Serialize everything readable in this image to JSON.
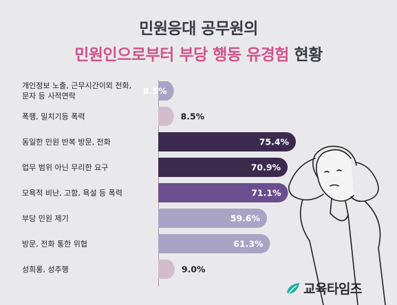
{
  "title": {
    "line1": "민원응대 공무원의",
    "line2_highlight": "민원인으로부터 부당 행동 유경험",
    "line2_rest": " 현황"
  },
  "chart_data": {
    "type": "bar",
    "orientation": "horizontal",
    "categories": [
      [
        "개인정보 노출, 근무시간이외 전화,",
        "문자 등 사적연락"
      ],
      [
        "폭행, 밀치기등 폭력"
      ],
      [
        "동일한 민원 반복 방문, 전화"
      ],
      [
        "업무 범위 아닌 무리한 요구"
      ],
      [
        "모욕적 비난, 고함, 욕설 등 폭력"
      ],
      [
        "부당 민원 제기"
      ],
      [
        "방문, 전화 통한 위협"
      ],
      [
        "성희롱, 성추행"
      ]
    ],
    "values": [
      8.5,
      8.5,
      75.4,
      70.9,
      71.1,
      59.6,
      61.3,
      9.0
    ],
    "labels": [
      "8.5%",
      "8.5%",
      "75.4%",
      "70.9%",
      "71.1%",
      "59.6%",
      "61.3%",
      "9.0%"
    ],
    "colors": [
      "#a9a3c6",
      "#d3bdcc",
      "#3b2a4e",
      "#3b2a4e",
      "#6a4e8d",
      "#a9a3c6",
      "#a9a3c6",
      "#d3bdcc"
    ],
    "label_inside": [
      true,
      false,
      true,
      true,
      true,
      true,
      true,
      false
    ]
  },
  "logo": {
    "text": "교육타임즈",
    "icon": "leaf-logo-icon"
  }
}
